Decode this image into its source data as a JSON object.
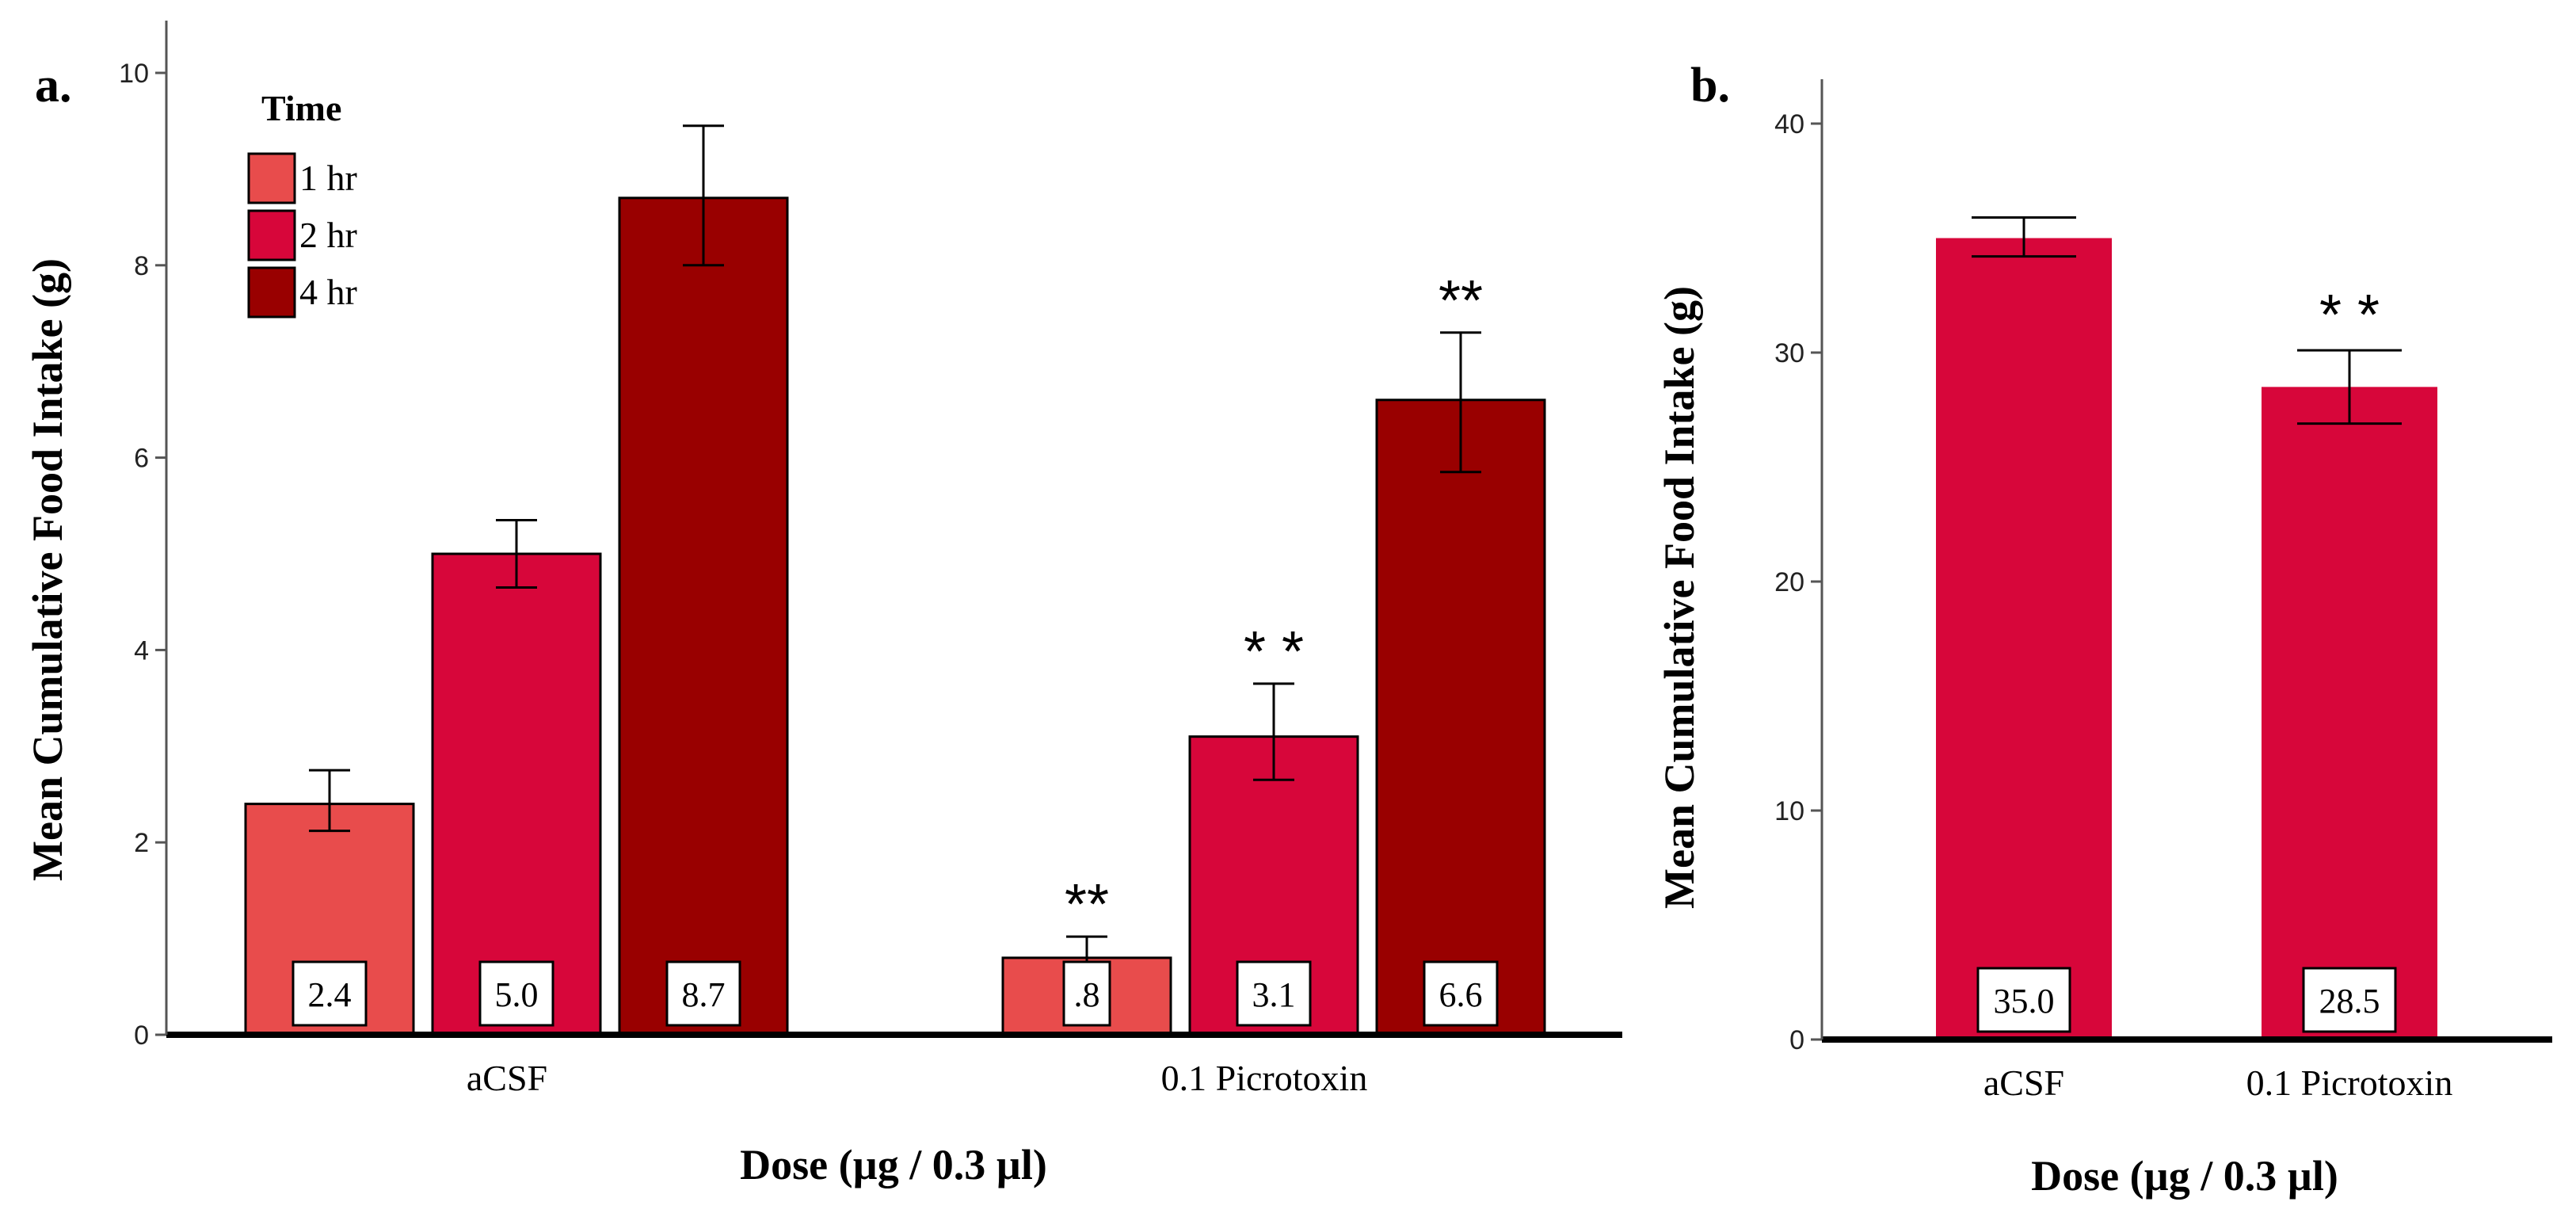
{
  "chart_data": [
    {
      "panel": "a.",
      "type": "bar",
      "categories": [
        "aCSF",
        "0.1 Picrotoxin"
      ],
      "series": [
        {
          "name": "1 hr",
          "color": "#E84C4C",
          "values": [
            2.4,
            0.8
          ],
          "value_labels": [
            "2.4",
            ".8"
          ],
          "error_low": [
            2.12,
            0.55
          ],
          "error_high": [
            2.75,
            1.02
          ],
          "sig": [
            "",
            "**"
          ]
        },
        {
          "name": "2 hr",
          "color": "#D7063A",
          "values": [
            5.0,
            3.1
          ],
          "value_labels": [
            "5.0",
            "3.1"
          ],
          "error_low": [
            4.65,
            2.65
          ],
          "error_high": [
            5.35,
            3.65
          ],
          "sig": [
            "",
            "* *"
          ]
        },
        {
          "name": "4 hr",
          "color": "#990000",
          "values": [
            8.7,
            6.6
          ],
          "value_labels": [
            "8.7",
            "6.6"
          ],
          "error_low": [
            8.0,
            5.85
          ],
          "error_high": [
            9.45,
            7.3
          ],
          "sig": [
            "",
            "**"
          ]
        }
      ],
      "legend_title": "Time",
      "legend_position": "top-left",
      "ylabel": "Mean Cumulative Food Intake (g)",
      "xlabel": "Dose (µg / 0.3 µl)",
      "ylim": [
        0,
        10
      ],
      "yticks": [
        0,
        2,
        4,
        6,
        8,
        10
      ]
    },
    {
      "panel": "b.",
      "type": "bar",
      "categories": [
        "aCSF",
        "0.1 Picrotoxin"
      ],
      "series": [
        {
          "name": "",
          "color": "#D7063A",
          "values": [
            35.0,
            28.5
          ],
          "value_labels": [
            "35.0",
            "28.5"
          ],
          "error_low": [
            34.2,
            26.9
          ],
          "error_high": [
            35.9,
            30.1
          ],
          "sig": [
            "",
            "* *"
          ]
        }
      ],
      "ylabel": "Mean Cumulative Food Intake (g)",
      "xlabel": "Dose (µg / 0.3 µl)",
      "ylim": [
        0,
        40
      ],
      "yticks": [
        0,
        10,
        20,
        30,
        40
      ]
    }
  ]
}
